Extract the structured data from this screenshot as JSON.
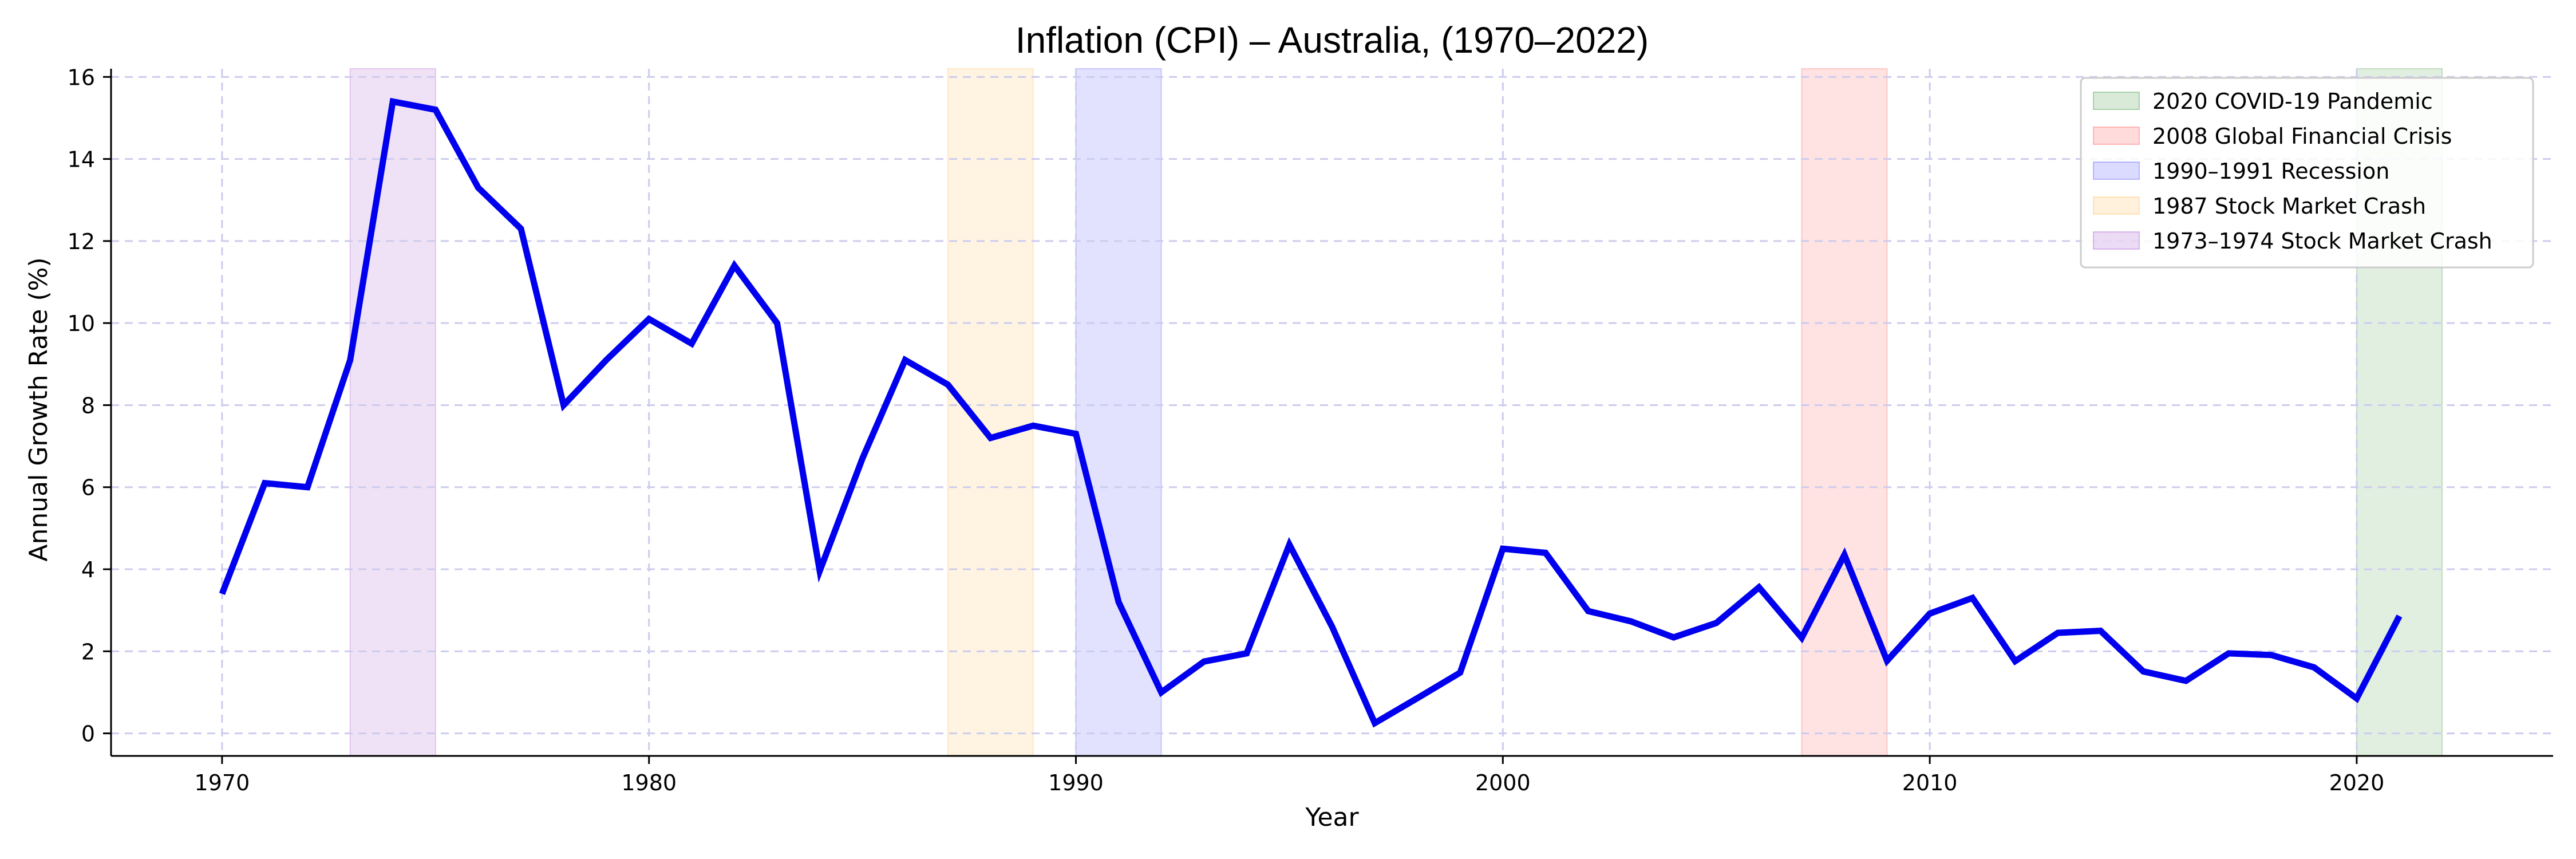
{
  "chart_data": {
    "type": "line",
    "title": "Inflation (CPI) – Australia, (1970–2022)",
    "xlabel": "Year",
    "ylabel": "Annual Growth Rate (%)",
    "xlim": [
      1967.4,
      2024.6
    ],
    "ylim": [
      -0.55,
      16.2
    ],
    "xticks": [
      1970,
      1980,
      1990,
      2000,
      2010,
      2020
    ],
    "yticks": [
      0,
      2,
      4,
      6,
      8,
      10,
      12,
      14,
      16
    ],
    "grid": true,
    "legend_position": "top-right",
    "series": [
      {
        "name": "Inflation (CPI)",
        "color": "#0000ee",
        "x": [
          1970,
          1971,
          1972,
          1973,
          1974,
          1975,
          1976,
          1977,
          1978,
          1979,
          1980,
          1981,
          1982,
          1983,
          1984,
          1985,
          1986,
          1987,
          1988,
          1989,
          1990,
          1991,
          1992,
          1993,
          1994,
          1995,
          1996,
          1997,
          1998,
          1999,
          2000,
          2001,
          2002,
          2003,
          2004,
          2005,
          2006,
          2007,
          2008,
          2009,
          2010,
          2011,
          2012,
          2013,
          2014,
          2015,
          2016,
          2017,
          2018,
          2019,
          2020,
          2021
        ],
        "values": [
          3.4,
          6.1,
          6.0,
          9.1,
          15.4,
          15.2,
          13.3,
          12.3,
          8.0,
          9.1,
          10.1,
          9.5,
          11.4,
          10.0,
          3.96,
          6.7,
          9.1,
          8.5,
          7.2,
          7.5,
          7.3,
          3.2,
          1.0,
          1.75,
          1.95,
          4.6,
          2.6,
          0.25,
          0.86,
          1.48,
          4.5,
          4.4,
          2.98,
          2.73,
          2.34,
          2.69,
          3.56,
          2.33,
          4.35,
          1.77,
          2.92,
          3.3,
          1.76,
          2.45,
          2.5,
          1.51,
          1.28,
          1.95,
          1.91,
          1.61,
          0.85,
          2.86
        ]
      }
    ],
    "shaded_periods": [
      {
        "label": "2020 COVID-19 Pandemic",
        "start": 2020,
        "end": 2022,
        "color": "#2e8b2e",
        "opacity": 0.14
      },
      {
        "label": "2008 Global Financial Crisis",
        "start": 2007,
        "end": 2009,
        "color": "#ff4d4d",
        "opacity": 0.16
      },
      {
        "label": "1990–1991 Recession",
        "start": 1990,
        "end": 1992,
        "color": "#4d4dff",
        "opacity": 0.16
      },
      {
        "label": "1987 Stock Market Crash",
        "start": 1987,
        "end": 1989,
        "color": "#ffb84d",
        "opacity": 0.16
      },
      {
        "label": "1973–1974 Stock Market Crash",
        "start": 1973,
        "end": 1975,
        "color": "#a04dc8",
        "opacity": 0.16
      }
    ],
    "colors": {
      "axis": "#000000",
      "grid": "#ccccee",
      "legend_border": "#cccccc",
      "text": "#000000"
    }
  }
}
